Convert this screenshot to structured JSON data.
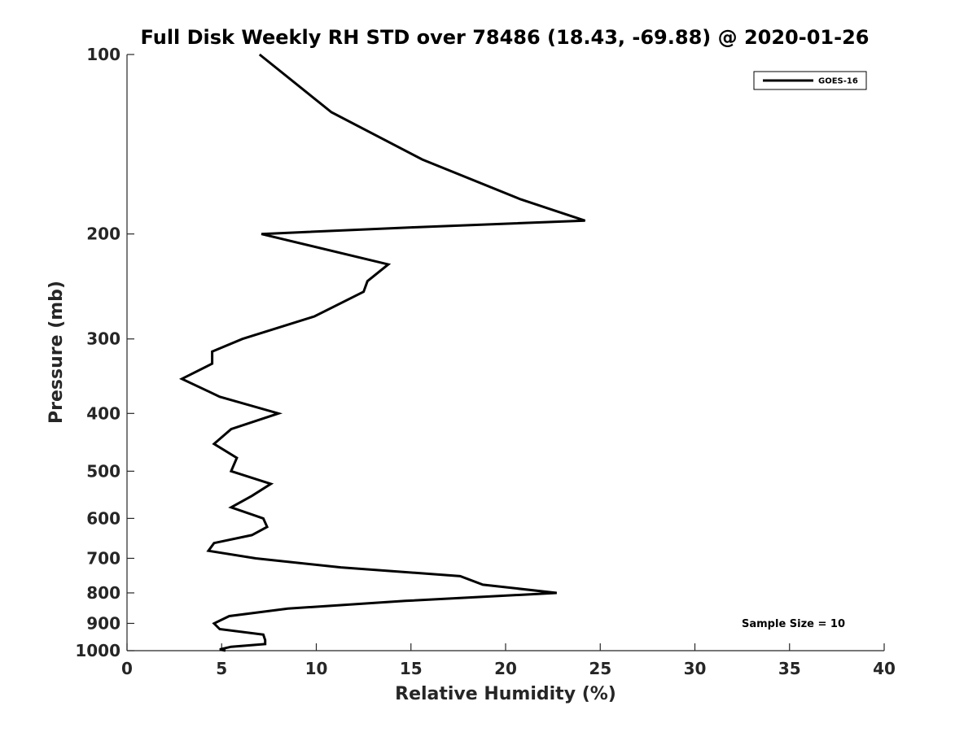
{
  "chart_data": {
    "type": "line",
    "title": "Full Disk Weekly RH STD over 78486 (18.43, -69.88) @ 2020-01-26",
    "xlabel": "Relative Humidity (%)",
    "ylabel": "Pressure (mb)",
    "xlim": [
      0,
      40
    ],
    "ylim": [
      100,
      1000
    ],
    "yscale": "log",
    "y_reversed": true,
    "x_ticks": [
      0,
      5,
      10,
      15,
      20,
      25,
      30,
      35,
      40
    ],
    "x_tick_labels": [
      "0",
      "5",
      "10",
      "15",
      "20",
      "25",
      "30",
      "35",
      "40"
    ],
    "y_ticks": [
      100,
      200,
      300,
      400,
      500,
      600,
      700,
      800,
      900,
      1000
    ],
    "y_tick_labels": [
      "100",
      "200",
      "300",
      "400",
      "500",
      "600",
      "700",
      "800",
      "900",
      "1000"
    ],
    "grid": false,
    "legend_position": "top-right",
    "series": [
      {
        "name": "GOES-16",
        "color": "#000000",
        "x": [
          7.0,
          10.8,
          15.6,
          20.8,
          24.2,
          15.0,
          7.1,
          13.8,
          12.7,
          12.5,
          9.9,
          6.1,
          4.5,
          4.5,
          2.9,
          4.9,
          8.0,
          5.5,
          4.6,
          5.8,
          5.5,
          7.6,
          6.6,
          5.5,
          7.2,
          7.4,
          6.6,
          4.6,
          4.3,
          6.8,
          11.3,
          17.6,
          18.8,
          22.7,
          14.7,
          8.5,
          5.4,
          4.6,
          4.9,
          7.2,
          7.3,
          7.3,
          5.5,
          4.9,
          5.2
        ],
        "y": [
          100,
          125,
          150,
          175,
          190,
          195,
          200,
          225,
          240,
          250,
          275,
          300,
          315,
          330,
          350,
          375,
          400,
          425,
          450,
          475,
          500,
          525,
          550,
          575,
          600,
          620,
          640,
          660,
          680,
          700,
          725,
          750,
          775,
          800,
          825,
          850,
          875,
          900,
          920,
          940,
          960,
          975,
          985,
          995,
          1000
        ]
      }
    ],
    "annotations": [
      {
        "text": "Sample Size = 10",
        "position": "bottom-right"
      }
    ]
  }
}
